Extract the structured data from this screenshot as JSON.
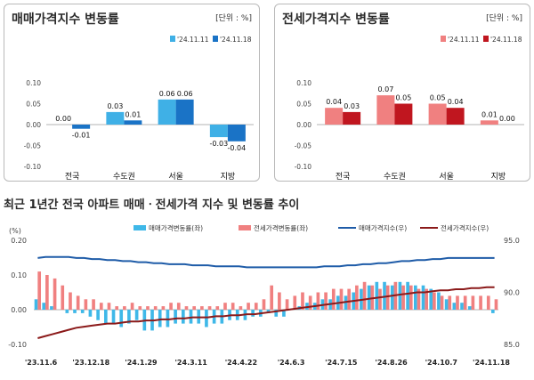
{
  "chart_data": [
    {
      "type": "bar",
      "title": "매매가격지수 변동률",
      "unit": "[단위 : %]",
      "categories": [
        "전국",
        "수도권",
        "서울",
        "지방"
      ],
      "series": [
        {
          "name": "'24.11.11",
          "values": [
            0.0,
            0.03,
            0.06,
            -0.03
          ],
          "labels": [
            "0.00",
            "0.03",
            "0.06",
            "-0.03"
          ],
          "color": "#3fb0e6"
        },
        {
          "name": "'24.11.18",
          "values": [
            -0.01,
            0.01,
            0.06,
            -0.04
          ],
          "labels": [
            "-0.01",
            "0.01",
            "0.06",
            "-0.04"
          ],
          "color": "#1a73c6"
        }
      ],
      "ylim": [
        -0.1,
        0.1
      ],
      "yticks": [
        "0.10",
        "0.05",
        "0.00",
        "-0.05",
        "-0.10"
      ],
      "legend_position": "top-right"
    },
    {
      "type": "bar",
      "title": "전세가격지수 변동률",
      "unit": "[단위 : %]",
      "categories": [
        "전국",
        "수도권",
        "서울",
        "지방"
      ],
      "series": [
        {
          "name": "'24.11.11",
          "values": [
            0.04,
            0.07,
            0.05,
            0.01
          ],
          "labels": [
            "0.04",
            "0.07",
            "0.05",
            "0.01"
          ],
          "color": "#f08080"
        },
        {
          "name": "'24.11.18",
          "values": [
            0.03,
            0.05,
            0.04,
            0.0
          ],
          "labels": [
            "0.03",
            "0.05",
            "0.04",
            "0.00"
          ],
          "color": "#c0161f"
        }
      ],
      "ylim": [
        -0.1,
        0.1
      ],
      "yticks": [
        "0.10",
        "0.05",
        "0.00",
        "-0.05",
        "-0.10"
      ],
      "legend_position": "top-right"
    },
    {
      "type": "bar+line",
      "title": "최근 1년간 전국 아파트 매매ㆍ전세가격 지수 및 변동률 추이",
      "left_axis_label": "(%)",
      "left_yticks": [
        "0.20",
        "0.10",
        "0.00",
        "-0.10"
      ],
      "left_ylim": [
        -0.1,
        0.2
      ],
      "right_yticks": [
        "95.0",
        "90.0",
        "85.0"
      ],
      "right_ylim": [
        85.0,
        95.0
      ],
      "x_tick_labels": [
        "'23.11.6",
        "'23.12.18",
        "'24.1.29",
        "'24.3.11",
        "'24.4.22",
        "'24.6.3",
        "'24.7.15",
        "'24.8.26",
        "'24.10.7",
        "'24.11.18"
      ],
      "series": [
        {
          "name": "매매가격변동률(좌)",
          "type": "bar",
          "color": "#3fb8e8",
          "values": [
            0.03,
            0.02,
            0.01,
            0.0,
            -0.01,
            -0.01,
            -0.01,
            -0.02,
            -0.03,
            -0.04,
            -0.04,
            -0.05,
            -0.04,
            -0.03,
            -0.06,
            -0.06,
            -0.05,
            -0.05,
            -0.04,
            -0.04,
            -0.04,
            -0.04,
            -0.05,
            -0.04,
            -0.04,
            -0.03,
            -0.03,
            -0.03,
            -0.02,
            -0.02,
            -0.01,
            -0.02,
            -0.02,
            0.0,
            0.01,
            0.02,
            0.02,
            0.03,
            0.03,
            0.04,
            0.04,
            0.05,
            0.06,
            0.07,
            0.08,
            0.08,
            0.07,
            0.08,
            0.08,
            0.07,
            0.07,
            0.06,
            0.05,
            0.03,
            0.02,
            0.02,
            0.01,
            0.0,
            0.0,
            -0.01
          ]
        },
        {
          "name": "전세가격변동률(좌)",
          "type": "bar",
          "color": "#f08080",
          "values": [
            0.11,
            0.1,
            0.09,
            0.07,
            0.05,
            0.04,
            0.03,
            0.03,
            0.02,
            0.02,
            0.01,
            0.01,
            0.02,
            0.01,
            0.01,
            0.01,
            0.01,
            0.02,
            0.02,
            0.01,
            0.01,
            0.01,
            0.01,
            0.01,
            0.02,
            0.02,
            0.01,
            0.02,
            0.02,
            0.03,
            0.07,
            0.05,
            0.03,
            0.04,
            0.05,
            0.04,
            0.05,
            0.05,
            0.06,
            0.06,
            0.06,
            0.07,
            0.08,
            0.07,
            0.06,
            0.07,
            0.08,
            0.07,
            0.07,
            0.06,
            0.06,
            0.05,
            0.04,
            0.04,
            0.04,
            0.04,
            0.04,
            0.04,
            0.04,
            0.03
          ]
        },
        {
          "name": "매매가격지수(우)",
          "type": "line",
          "color": "#1f5ca8",
          "values": [
            93.3,
            93.4,
            93.4,
            93.4,
            93.4,
            93.3,
            93.3,
            93.2,
            93.2,
            93.1,
            93.1,
            93.0,
            93.0,
            92.9,
            92.9,
            92.8,
            92.8,
            92.7,
            92.7,
            92.7,
            92.6,
            92.6,
            92.6,
            92.5,
            92.5,
            92.5,
            92.5,
            92.4,
            92.4,
            92.4,
            92.4,
            92.4,
            92.4,
            92.4,
            92.4,
            92.4,
            92.4,
            92.5,
            92.5,
            92.5,
            92.6,
            92.6,
            92.7,
            92.7,
            92.8,
            92.8,
            92.9,
            93.0,
            93.0,
            93.1,
            93.1,
            93.2,
            93.2,
            93.3,
            93.3,
            93.3,
            93.3,
            93.3,
            93.3,
            93.3
          ]
        },
        {
          "name": "전세가격지수(우)",
          "type": "line",
          "color": "#8b1a1a",
          "values": [
            85.6,
            85.8,
            86.0,
            86.2,
            86.4,
            86.6,
            86.7,
            86.8,
            86.9,
            87.0,
            87.0,
            87.1,
            87.2,
            87.2,
            87.3,
            87.3,
            87.4,
            87.4,
            87.5,
            87.5,
            87.6,
            87.6,
            87.6,
            87.7,
            87.7,
            87.8,
            87.8,
            87.9,
            87.9,
            88.0,
            88.1,
            88.2,
            88.3,
            88.4,
            88.5,
            88.6,
            88.7,
            88.8,
            88.9,
            89.0,
            89.1,
            89.2,
            89.3,
            89.4,
            89.5,
            89.6,
            89.7,
            89.8,
            89.9,
            90.0,
            90.0,
            90.1,
            90.2,
            90.2,
            90.3,
            90.3,
            90.4,
            90.4,
            90.5,
            90.5
          ]
        }
      ],
      "legend_position": "top"
    }
  ]
}
